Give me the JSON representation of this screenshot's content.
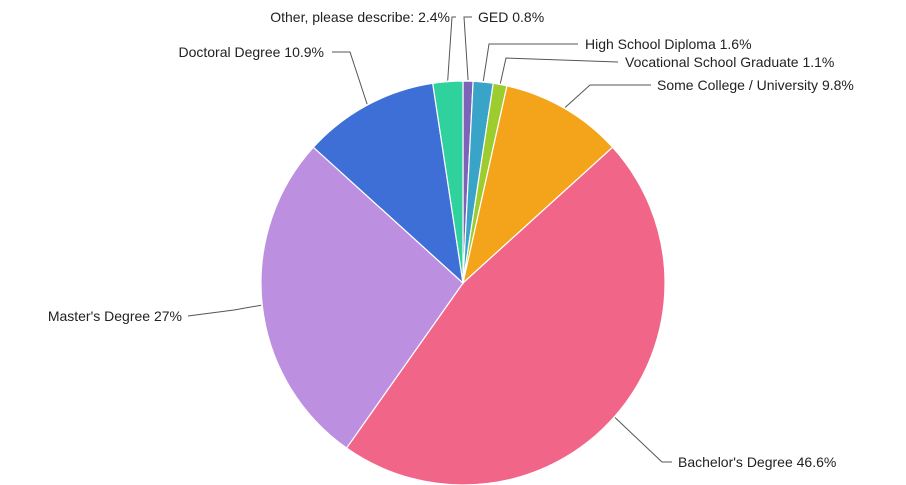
{
  "chart_data": {
    "type": "pie",
    "title": "",
    "start": "top",
    "direction": "clockwise",
    "slices": [
      {
        "label": "GED",
        "value": 0.8,
        "color": "#7d63b8",
        "label_text": "GED 0.8%"
      },
      {
        "label": "High School Diploma",
        "value": 1.6,
        "color": "#3aa3c8",
        "label_text": "High School Diploma 1.6%"
      },
      {
        "label": "Vocational School Graduate",
        "value": 1.1,
        "color": "#9ccc2e",
        "label_text": "Vocational School Graduate 1.1%"
      },
      {
        "label": "Some College / University",
        "value": 9.8,
        "color": "#f4a41a",
        "label_text": "Some College / University 9.8%"
      },
      {
        "label": "Bachelor's Degree",
        "value": 46.6,
        "color": "#f06588",
        "label_text": "Bachelor's Degree 46.6%"
      },
      {
        "label": "Master's Degree",
        "value": 27,
        "color": "#bd8fe0",
        "label_text": "Master's Degree 27%"
      },
      {
        "label": "Doctoral Degree",
        "value": 10.9,
        "color": "#3d6fd6",
        "label_text": "Doctoral Degree 10.9%"
      },
      {
        "label": "Other, please describe:",
        "value": 2.4,
        "color": "#2fd19c",
        "label_text": "Other, please describe: 2.4%"
      }
    ]
  }
}
